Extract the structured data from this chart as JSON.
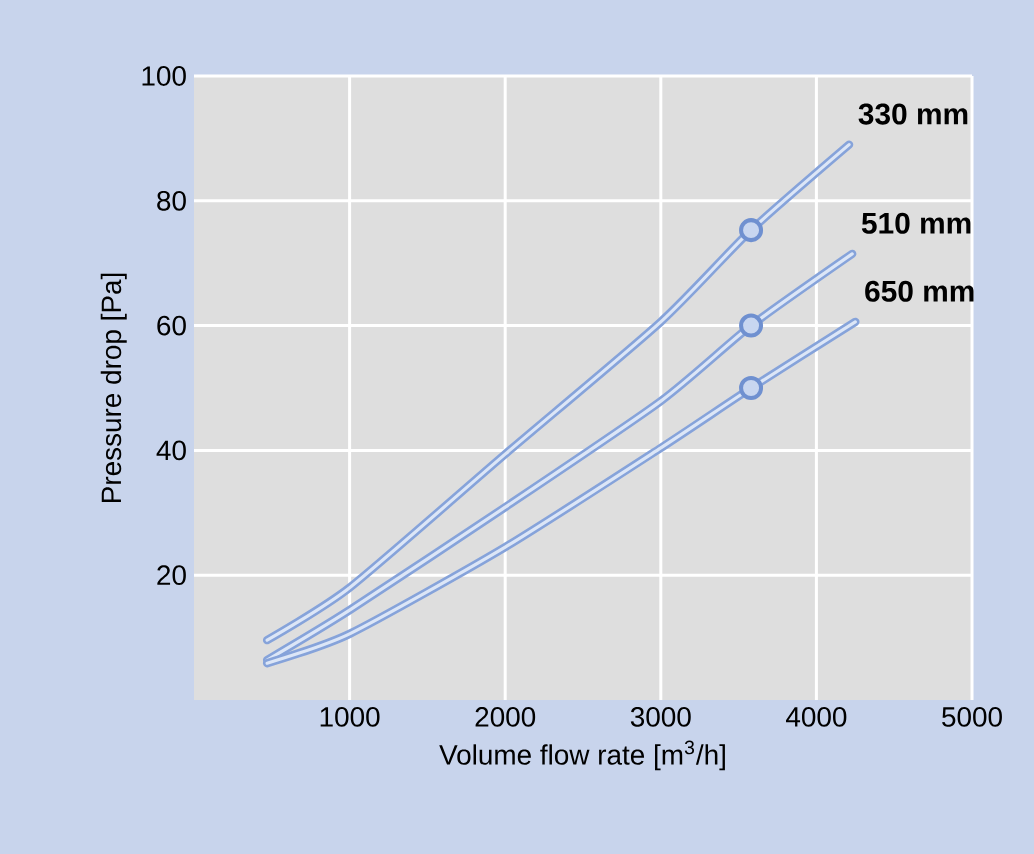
{
  "chart_data": {
    "type": "line",
    "xlabel": "Volume flow rate [m$^{3}$/h]",
    "ylabel": "Pressure drop [Pa]",
    "xlim": [
      0,
      5000
    ],
    "xticks": [
      1000,
      2000,
      3000,
      4000,
      5000
    ],
    "ylim": [
      0,
      100
    ],
    "yticks": [
      20,
      40,
      60,
      80,
      100
    ],
    "grid": true,
    "marker": "none",
    "line_style": "solid",
    "series": [
      {
        "name": "330 mm",
        "color": "#86a3da",
        "x": [
          470,
          1000,
          2000,
          3000,
          3580,
          4210
        ],
        "values": [
          9.6,
          18,
          39.4,
          60.6,
          75.3,
          89
        ]
      },
      {
        "name": "510 mm",
        "color": "#86a3da",
        "x": [
          470,
          1000,
          2000,
          3000,
          3580,
          4230
        ],
        "values": [
          6.4,
          14.4,
          30.9,
          47.9,
          60,
          71.5
        ]
      },
      {
        "name": "650 mm",
        "color": "#86a3da",
        "x": [
          470,
          1000,
          2000,
          3000,
          3580,
          4250
        ],
        "values": [
          5.9,
          10.6,
          24.5,
          40.4,
          50,
          60.6
        ]
      },
      {
        "type": "scatter",
        "marker": "circle",
        "color": "#6f90d0",
        "x": [
          3580,
          3580,
          3580
        ],
        "values": [
          75.3,
          60,
          50
        ]
      }
    ]
  }
}
